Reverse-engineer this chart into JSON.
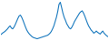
{
  "values": [
    55,
    58,
    60,
    62,
    65,
    68,
    72,
    75,
    70,
    68,
    72,
    78,
    85,
    92,
    98,
    100,
    95,
    88,
    80,
    72,
    65,
    60,
    56,
    53,
    50,
    48,
    47,
    46,
    45,
    46,
    47,
    48,
    49,
    50,
    51,
    52,
    53,
    55,
    58,
    62,
    68,
    75,
    85,
    95,
    108,
    125,
    130,
    118,
    105,
    95,
    88,
    80,
    75,
    70,
    68,
    72,
    78,
    85,
    90,
    95,
    100,
    105,
    108,
    110,
    105,
    98,
    90,
    82,
    75,
    70,
    65,
    62,
    58,
    60,
    63,
    60,
    58,
    56,
    60,
    63,
    58,
    55,
    52,
    50
  ],
  "line_color": "#1a7abf",
  "background_color": "#ffffff",
  "linewidth": 0.8
}
